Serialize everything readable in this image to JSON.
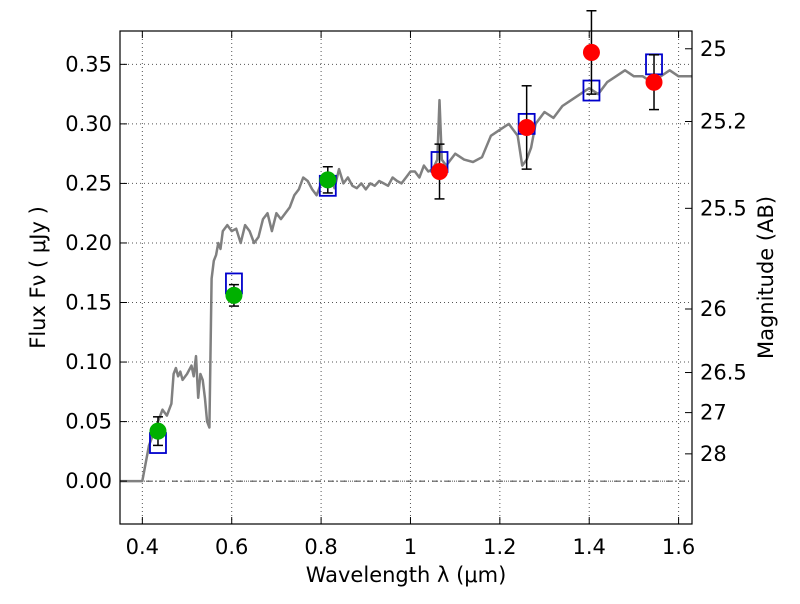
{
  "chart_data": {
    "type": "scatter",
    "xlabel": "Wavelength  λ (μm)",
    "ylabel": "Flux  Fν  ( μJy )",
    "y2label": "Magnitude (AB)",
    "xlim": [
      0.35,
      1.63
    ],
    "ylim": [
      -0.036,
      0.378
    ],
    "grid": true,
    "x_ticks": [
      {
        "value": 0.4,
        "label": "0.4"
      },
      {
        "value": 0.6,
        "label": "0.6"
      },
      {
        "value": 0.8,
        "label": "0.8"
      },
      {
        "value": 1.0,
        "label": "1"
      },
      {
        "value": 1.2,
        "label": "1.2"
      },
      {
        "value": 1.4,
        "label": "1.4"
      },
      {
        "value": 1.6,
        "label": "1.6"
      }
    ],
    "y_ticks": [
      {
        "value": 0.0,
        "label": "0.00"
      },
      {
        "value": 0.05,
        "label": "0.05"
      },
      {
        "value": 0.1,
        "label": "0.10"
      },
      {
        "value": 0.15,
        "label": "0.15"
      },
      {
        "value": 0.2,
        "label": "0.20"
      },
      {
        "value": 0.25,
        "label": "0.25"
      },
      {
        "value": 0.3,
        "label": "0.30"
      },
      {
        "value": 0.35,
        "label": "0.35"
      }
    ],
    "mag_ticks": [
      {
        "label": "25",
        "mag": 25.0
      },
      {
        "label": "25.2",
        "mag": 25.2
      },
      {
        "label": "25.5",
        "mag": 25.5
      },
      {
        "label": "26",
        "mag": 26.0
      },
      {
        "label": "26.5",
        "mag": 26.5
      },
      {
        "label": "27",
        "mag": 27.0
      },
      {
        "label": "28",
        "mag": 28.0
      }
    ],
    "model_spectrum": {
      "color": "#808080",
      "x": [
        0.35,
        0.4,
        0.415,
        0.425,
        0.435,
        0.445,
        0.455,
        0.465,
        0.47,
        0.475,
        0.48,
        0.485,
        0.49,
        0.5,
        0.51,
        0.515,
        0.52,
        0.525,
        0.53,
        0.535,
        0.54,
        0.545,
        0.55,
        0.555,
        0.56,
        0.565,
        0.57,
        0.575,
        0.58,
        0.59,
        0.6,
        0.61,
        0.62,
        0.63,
        0.64,
        0.65,
        0.66,
        0.67,
        0.68,
        0.69,
        0.7,
        0.71,
        0.72,
        0.73,
        0.74,
        0.75,
        0.76,
        0.77,
        0.78,
        0.79,
        0.8,
        0.81,
        0.82,
        0.83,
        0.84,
        0.85,
        0.86,
        0.87,
        0.88,
        0.89,
        0.9,
        0.91,
        0.92,
        0.93,
        0.94,
        0.95,
        0.96,
        0.97,
        0.98,
        0.99,
        1.0,
        1.01,
        1.02,
        1.03,
        1.04,
        1.05,
        1.06,
        1.065,
        1.07,
        1.08,
        1.09,
        1.1,
        1.12,
        1.14,
        1.16,
        1.18,
        1.2,
        1.22,
        1.24,
        1.25,
        1.26,
        1.27,
        1.28,
        1.3,
        1.32,
        1.34,
        1.36,
        1.38,
        1.4,
        1.42,
        1.44,
        1.46,
        1.48,
        1.5,
        1.52,
        1.54,
        1.56,
        1.58,
        1.6,
        1.63
      ],
      "y": [
        0.0,
        0.0,
        0.03,
        0.04,
        0.05,
        0.06,
        0.055,
        0.065,
        0.09,
        0.095,
        0.088,
        0.092,
        0.085,
        0.09,
        0.097,
        0.088,
        0.105,
        0.07,
        0.09,
        0.085,
        0.07,
        0.05,
        0.045,
        0.17,
        0.185,
        0.19,
        0.2,
        0.195,
        0.21,
        0.215,
        0.21,
        0.212,
        0.2,
        0.215,
        0.21,
        0.2,
        0.205,
        0.22,
        0.225,
        0.21,
        0.225,
        0.22,
        0.225,
        0.23,
        0.24,
        0.245,
        0.255,
        0.252,
        0.245,
        0.24,
        0.25,
        0.255,
        0.258,
        0.246,
        0.262,
        0.25,
        0.255,
        0.248,
        0.246,
        0.25,
        0.245,
        0.25,
        0.248,
        0.252,
        0.25,
        0.248,
        0.255,
        0.252,
        0.25,
        0.255,
        0.26,
        0.26,
        0.255,
        0.265,
        0.26,
        0.262,
        0.27,
        0.32,
        0.27,
        0.265,
        0.27,
        0.275,
        0.27,
        0.268,
        0.272,
        0.29,
        0.295,
        0.3,
        0.29,
        0.265,
        0.27,
        0.28,
        0.3,
        0.31,
        0.305,
        0.315,
        0.32,
        0.325,
        0.33,
        0.325,
        0.335,
        0.34,
        0.345,
        0.34,
        0.34,
        0.335,
        0.34,
        0.345,
        0.34,
        0.34
      ]
    },
    "observed": [
      {
        "x": 0.435,
        "y": 0.042,
        "err": 0.012,
        "color": "#00b000"
      },
      {
        "x": 0.605,
        "y": 0.156,
        "err": 0.009,
        "color": "#00b000"
      },
      {
        "x": 0.815,
        "y": 0.253,
        "err": 0.011,
        "color": "#00b000"
      },
      {
        "x": 1.065,
        "y": 0.26,
        "err": 0.023,
        "color": "#ff0000"
      },
      {
        "x": 1.26,
        "y": 0.297,
        "err": 0.035,
        "color": "#ff0000"
      },
      {
        "x": 1.405,
        "y": 0.36,
        "err": 0.035,
        "color": "#ff0000"
      },
      {
        "x": 1.545,
        "y": 0.335,
        "err": 0.023,
        "color": "#ff0000"
      }
    ],
    "model_photometry": [
      {
        "x": 0.435,
        "y": 0.032
      },
      {
        "x": 0.605,
        "y": 0.166
      },
      {
        "x": 0.815,
        "y": 0.248
      },
      {
        "x": 1.065,
        "y": 0.268
      },
      {
        "x": 1.26,
        "y": 0.3
      },
      {
        "x": 1.405,
        "y": 0.328
      },
      {
        "x": 1.545,
        "y": 0.35
      }
    ],
    "marker_colors": {
      "box": "#0000cc",
      "errorbar": "#000000"
    }
  }
}
